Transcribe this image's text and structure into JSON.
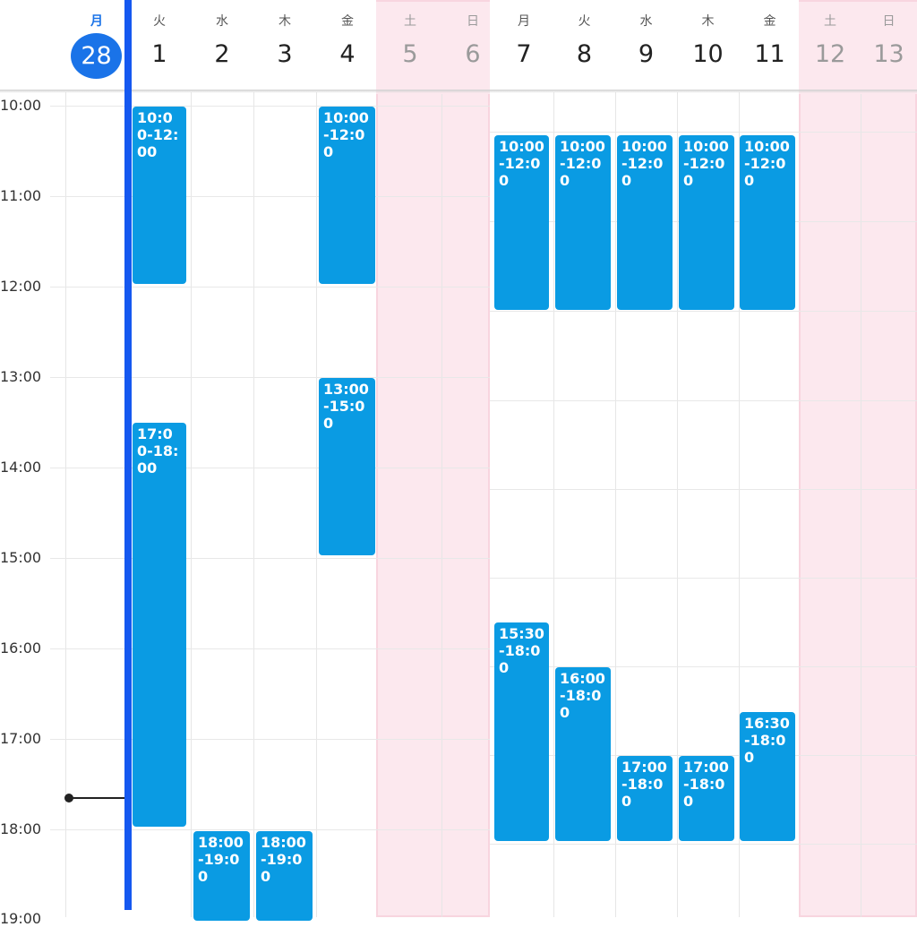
{
  "left_week": {
    "days": [
      {
        "weekday": "月",
        "day": "28"
      },
      {
        "weekday": "火",
        "day": "1"
      },
      {
        "weekday": "水",
        "day": "2"
      },
      {
        "weekday": "木",
        "day": "3"
      },
      {
        "weekday": "金",
        "day": "4"
      },
      {
        "weekday": "土",
        "day": "5"
      },
      {
        "weekday": "日",
        "day": "6"
      }
    ],
    "time_labels": [
      "10:00",
      "11:00",
      "12:00",
      "13:00",
      "14:00",
      "15:00",
      "16:00",
      "17:00",
      "18:00",
      "19:00"
    ],
    "events": [
      {
        "text": "10:00-12:00"
      },
      {
        "text": "17:00-18:00"
      },
      {
        "text": "10:00-12:00"
      },
      {
        "text": "13:00-15:00"
      },
      {
        "text": "18:00-19:00"
      },
      {
        "text": "18:00-19:00"
      }
    ]
  },
  "right_week": {
    "days": [
      {
        "weekday": "月",
        "day": "7"
      },
      {
        "weekday": "火",
        "day": "8"
      },
      {
        "weekday": "水",
        "day": "9"
      },
      {
        "weekday": "木",
        "day": "10"
      },
      {
        "weekday": "金",
        "day": "11"
      },
      {
        "weekday": "土",
        "day": "12"
      },
      {
        "weekday": "日",
        "day": "13"
      }
    ],
    "events": [
      {
        "text": "10:00-12:00"
      },
      {
        "text": "10:00-12:00"
      },
      {
        "text": "10:00-12:00"
      },
      {
        "text": "10:00-12:00"
      },
      {
        "text": "10:00-12:00"
      },
      {
        "text": "15:30-18:00"
      },
      {
        "text": "16:00-18:00"
      },
      {
        "text": "17:00-18:00"
      },
      {
        "text": "17:00-18:00"
      },
      {
        "text": "16:30-18:00"
      }
    ]
  },
  "colors": {
    "event": "#0a9be3",
    "today_accent": "#1a73e8",
    "selection_bar": "#1558f0",
    "weekend_band": "#fce8ee"
  }
}
